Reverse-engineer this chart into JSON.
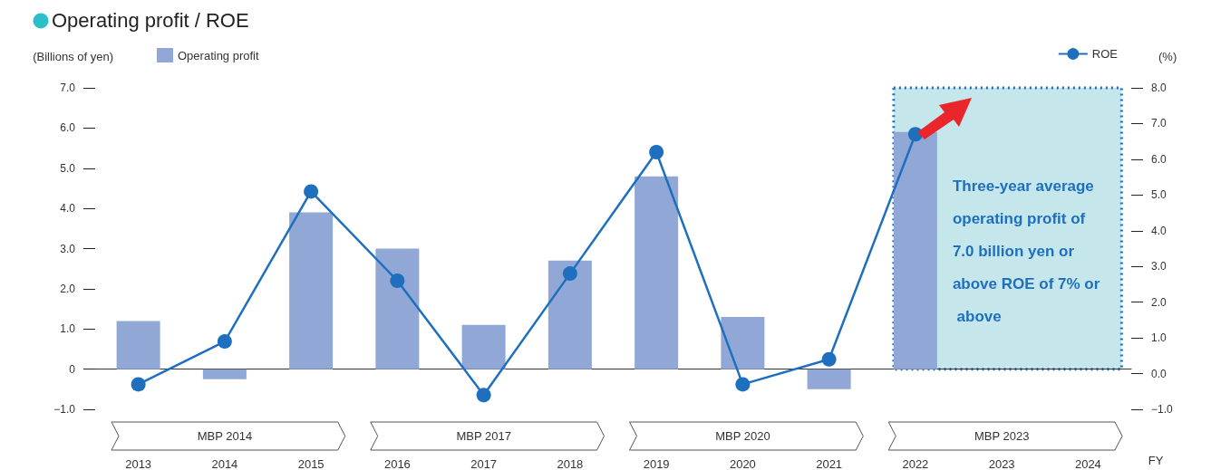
{
  "chart_data": {
    "type": "bar",
    "title": "Operating profit / ROE",
    "xlabel": "FY",
    "ylabel": "(Billions of yen)",
    "y2label": "(%)",
    "categories": [
      "2013",
      "2014",
      "2015",
      "2016",
      "2017",
      "2018",
      "2019",
      "2020",
      "2021",
      "2022",
      "2023",
      "2024"
    ],
    "series": [
      {
        "name": "Operating profit",
        "color": "#91a7d6",
        "values": [
          1.2,
          -0.25,
          3.9,
          3.0,
          1.1,
          2.7,
          4.8,
          1.3,
          -0.5,
          5.9,
          null,
          null
        ]
      },
      {
        "name": "ROE",
        "type": "line",
        "axis": "y2",
        "color": "#1f6fbf",
        "marker": "circle",
        "line_style": "solid",
        "values": [
          -0.3,
          0.9,
          5.1,
          2.6,
          -0.6,
          2.8,
          6.2,
          -0.3,
          0.4,
          6.7,
          null,
          null
        ]
      }
    ],
    "ylim": [
      -1,
      7
    ],
    "yticks": [
      {
        "value": -1,
        "label": "−1.0"
      },
      {
        "value": 0,
        "label": "0"
      },
      {
        "value": 1,
        "label": "1.0"
      },
      {
        "value": 2,
        "label": "2.0"
      },
      {
        "value": 3,
        "label": "3.0"
      },
      {
        "value": 4,
        "label": "4.0"
      },
      {
        "value": 5,
        "label": "5.0"
      },
      {
        "value": 6,
        "label": "6.0"
      },
      {
        "value": 7,
        "label": "7.0"
      }
    ],
    "y2lim": [
      -1,
      8
    ],
    "y2ticks": [
      {
        "value": -1,
        "label": "−1.0"
      },
      {
        "value": 0,
        "label": "0.0"
      },
      {
        "value": 1,
        "label": "1.0"
      },
      {
        "value": 2,
        "label": "2.0"
      },
      {
        "value": 3,
        "label": "3.0"
      },
      {
        "value": 4,
        "label": "4.0"
      },
      {
        "value": 5,
        "label": "5.0"
      },
      {
        "value": 6,
        "label": "6.0"
      },
      {
        "value": 7,
        "label": "7.0"
      },
      {
        "value": 8,
        "label": "8.0"
      }
    ],
    "bands": [
      {
        "axis": "x",
        "from": "2022",
        "to": "2024",
        "color": "#c5e6ea",
        "label": "Three-year average operating profit of 7.0 billion yen or above ROE of 7% or above"
      }
    ],
    "annotations": [
      "MBP 2014",
      "MBP 2017",
      "MBP 2020",
      "MBP 2023"
    ],
    "legend": "top"
  }
}
